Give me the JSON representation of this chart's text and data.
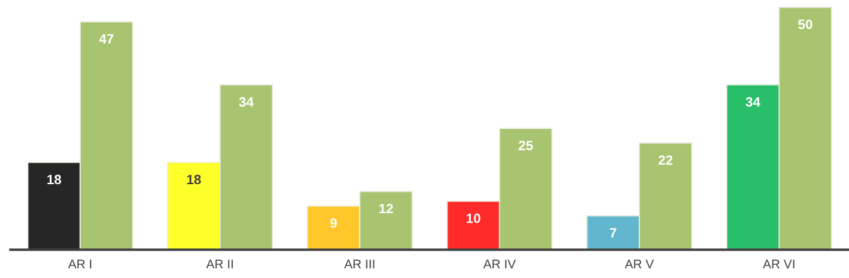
{
  "chart_data": {
    "type": "bar",
    "categories": [
      "AR I",
      "AR II",
      "AR III",
      "AR IV",
      "AR V",
      "AR VI"
    ],
    "series": [
      {
        "colors": [
          "#262626",
          "#ffff29",
          "#ffc729",
          "#ff2a2a",
          "#62b6cd",
          "#29be6a"
        ],
        "values": [
          18,
          18,
          9,
          10,
          7,
          34
        ]
      },
      {
        "color": "#a9c470",
        "values": [
          47,
          34,
          12,
          25,
          22,
          50
        ]
      }
    ],
    "data_labels": true,
    "grid": false,
    "legend": false
  }
}
